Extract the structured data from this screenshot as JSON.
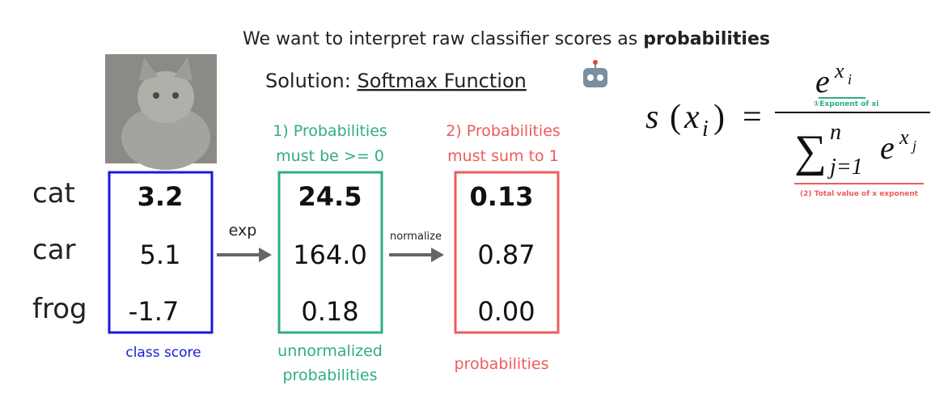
{
  "header": {
    "title": {
      "text": "We want to interpret raw classifier scores as ",
      "emphasis": "probabilities"
    },
    "solution": {
      "text": "Solution: ",
      "emphasis": "Softmax Function"
    }
  },
  "classes": [
    "cat",
    "car",
    "frog"
  ],
  "columns": [
    {
      "values": [
        "3.2",
        "5.1",
        "-1.7"
      ],
      "caption": [
        "class score"
      ]
    },
    {
      "heading": [
        "1) Probabilities",
        "must be >= 0"
      ],
      "values": [
        "24.5",
        "164.0",
        "0.18"
      ],
      "caption": [
        "unnormalized",
        "probabilities"
      ]
    },
    {
      "heading": [
        "2) Probabilities",
        "must sum to 1"
      ],
      "values": [
        "0.13",
        "0.87",
        "0.00"
      ],
      "caption": [
        "probabilities"
      ]
    }
  ],
  "arrows": [
    "exp",
    "normalize"
  ],
  "formula": {
    "lhs_fn": "s",
    "lhs_open": "(",
    "lhs_var": "x",
    "lhs_sub": "i",
    "lhs_close": ")",
    "equals": "=",
    "num_base": "e",
    "num_var": "x",
    "num_sub": "i",
    "num_note": "①Exponent of xi",
    "sum": "∑",
    "sum_top": "n",
    "sum_bottom": "j=1",
    "den_base": "e",
    "den_var": "x",
    "den_sub": "j",
    "den_note": "(2) Total value of x exponent"
  }
}
